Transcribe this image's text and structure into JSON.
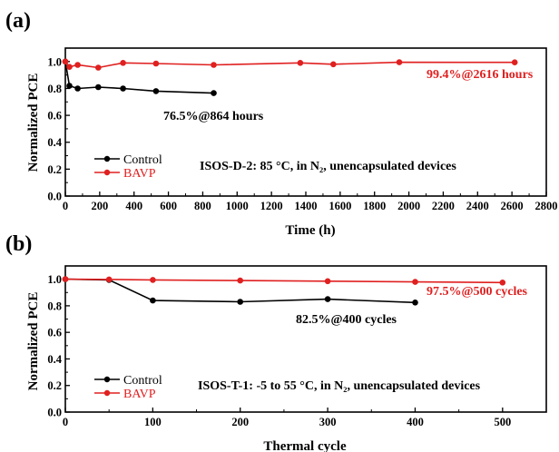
{
  "colors": {
    "control": "#000000",
    "bavp": "#e02020",
    "axis": "#000000"
  },
  "chart_data": [
    {
      "panel_label": "(a)",
      "type": "line",
      "xlabel": "Time (h)",
      "ylabel": "Normalized PCE",
      "xlim": [
        0,
        2800
      ],
      "ylim": [
        0.0,
        1.1
      ],
      "xticks": [
        0,
        200,
        400,
        600,
        800,
        1000,
        1200,
        1400,
        1600,
        1800,
        2000,
        2200,
        2400,
        2600,
        2800
      ],
      "yticks": [
        0.0,
        0.2,
        0.4,
        0.6,
        0.8,
        1.0
      ],
      "legend_position": "bottom-left",
      "condition_text": "ISOS-D-2: 85 °C, in N₂, unencapsulated devices",
      "series": [
        {
          "name": "Control",
          "color": "#000000",
          "x": [
            0,
            24,
            72,
            192,
            336,
            528,
            864
          ],
          "y": [
            1.0,
            0.82,
            0.8,
            0.81,
            0.8,
            0.78,
            0.765
          ]
        },
        {
          "name": "BAVP",
          "color": "#e02020",
          "x": [
            0,
            24,
            72,
            192,
            336,
            528,
            864,
            1368,
            1560,
            1944,
            2616
          ],
          "y": [
            1.0,
            0.96,
            0.975,
            0.955,
            0.99,
            0.985,
            0.975,
            0.99,
            0.98,
            0.995,
            0.994
          ]
        }
      ],
      "annotations": [
        {
          "text": "76.5%@864 hours",
          "series": "Control"
        },
        {
          "text": "99.4%@2616 hours",
          "series": "BAVP"
        }
      ]
    },
    {
      "panel_label": "(b)",
      "type": "line",
      "xlabel": "Thermal cycle",
      "ylabel": "Normalized PCE",
      "xlim": [
        0,
        550
      ],
      "ylim": [
        0.0,
        1.1
      ],
      "xticks": [
        0,
        100,
        200,
        300,
        400,
        500
      ],
      "yticks": [
        0.0,
        0.2,
        0.4,
        0.6,
        0.8,
        1.0
      ],
      "legend_position": "bottom-left",
      "condition_text": "ISOS-T-1: -5 to 55 °C, in N₂, unencapsulated devices",
      "series": [
        {
          "name": "Control",
          "color": "#000000",
          "x": [
            0,
            50,
            100,
            200,
            300,
            400
          ],
          "y": [
            1.0,
            0.995,
            0.84,
            0.83,
            0.85,
            0.825
          ]
        },
        {
          "name": "BAVP",
          "color": "#e02020",
          "x": [
            0,
            50,
            100,
            200,
            300,
            400,
            500
          ],
          "y": [
            1.0,
            0.998,
            0.995,
            0.99,
            0.985,
            0.98,
            0.975
          ]
        }
      ],
      "annotations": [
        {
          "text": "82.5%@400 cycles",
          "series": "Control"
        },
        {
          "text": "97.5%@500 cycles",
          "series": "BAVP"
        }
      ]
    }
  ]
}
